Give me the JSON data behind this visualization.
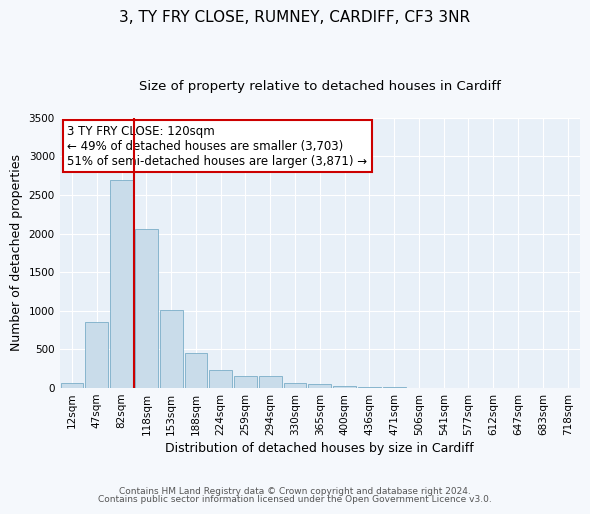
{
  "title": "3, TY FRY CLOSE, RUMNEY, CARDIFF, CF3 3NR",
  "subtitle": "Size of property relative to detached houses in Cardiff",
  "xlabel": "Distribution of detached houses by size in Cardiff",
  "ylabel": "Number of detached properties",
  "bar_color": "#c9dcea",
  "bar_edge_color": "#7aaec8",
  "background_color": "#e8f0f8",
  "fig_background_color": "#f5f8fc",
  "grid_color": "#ffffff",
  "categories": [
    "12sqm",
    "47sqm",
    "82sqm",
    "118sqm",
    "153sqm",
    "188sqm",
    "224sqm",
    "259sqm",
    "294sqm",
    "330sqm",
    "365sqm",
    "400sqm",
    "436sqm",
    "471sqm",
    "506sqm",
    "541sqm",
    "577sqm",
    "612sqm",
    "647sqm",
    "683sqm",
    "718sqm"
  ],
  "values": [
    60,
    850,
    2700,
    2060,
    1010,
    455,
    240,
    155,
    150,
    65,
    55,
    30,
    20,
    15,
    0,
    0,
    0,
    0,
    0,
    0,
    0
  ],
  "vline_color": "#cc0000",
  "annotation_line1": "3 TY FRY CLOSE: 120sqm",
  "annotation_line2": "← 49% of detached houses are smaller (3,703)",
  "annotation_line3": "51% of semi-detached houses are larger (3,871) →",
  "ylim": [
    0,
    3500
  ],
  "yticks": [
    0,
    500,
    1000,
    1500,
    2000,
    2500,
    3000,
    3500
  ],
  "footer1": "Contains HM Land Registry data © Crown copyright and database right 2024.",
  "footer2": "Contains public sector information licensed under the Open Government Licence v3.0.",
  "title_fontsize": 11,
  "subtitle_fontsize": 9.5,
  "axis_label_fontsize": 9,
  "tick_fontsize": 7.5,
  "annotation_fontsize": 8.5,
  "footer_fontsize": 6.5
}
